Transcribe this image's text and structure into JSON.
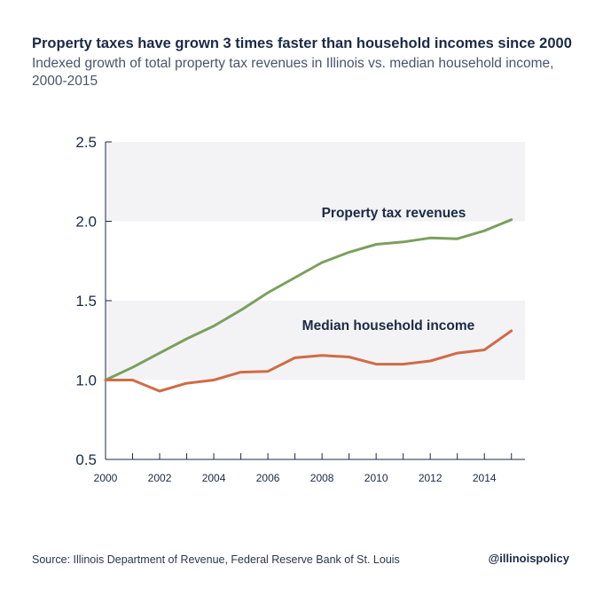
{
  "header": {
    "title": "Property taxes have grown 3 times faster than household incomes since 2000",
    "subtitle": "Indexed growth of total property tax revenues in Illinois vs. median household income, 2000-2015"
  },
  "footer": {
    "source": "Source:  Illinois Department of Revenue, Federal Reserve Bank of St. Louis",
    "handle": "@illinoispolicy"
  },
  "chart_data": {
    "type": "line",
    "x": [
      2000,
      2001,
      2002,
      2003,
      2004,
      2005,
      2006,
      2007,
      2008,
      2009,
      2010,
      2011,
      2012,
      2013,
      2014,
      2015
    ],
    "xticks": [
      "2000",
      "2002",
      "2004",
      "2006",
      "2008",
      "2010",
      "2012",
      "2014"
    ],
    "yticks": [
      "0.5",
      "1.0",
      "1.5",
      "2.0",
      "2.5"
    ],
    "xlim": [
      2000,
      2015.5
    ],
    "ylim": [
      0.5,
      2.5
    ],
    "bands": [
      [
        1.0,
        1.5
      ],
      [
        2.0,
        2.5
      ]
    ],
    "band_color": "#f3f3f5",
    "series": [
      {
        "name": "Property tax revenues",
        "color": "#7aa05e",
        "values": [
          1.0,
          1.08,
          1.17,
          1.26,
          1.34,
          1.44,
          1.55,
          1.645,
          1.74,
          1.805,
          1.855,
          1.87,
          1.895,
          1.89,
          1.94,
          2.01
        ]
      },
      {
        "name": "Median household income",
        "color": "#cf6c46",
        "values": [
          1.0,
          1.0,
          0.93,
          0.98,
          1.0,
          1.05,
          1.055,
          1.14,
          1.155,
          1.145,
          1.1,
          1.1,
          1.12,
          1.17,
          1.19,
          1.31
        ]
      }
    ]
  }
}
